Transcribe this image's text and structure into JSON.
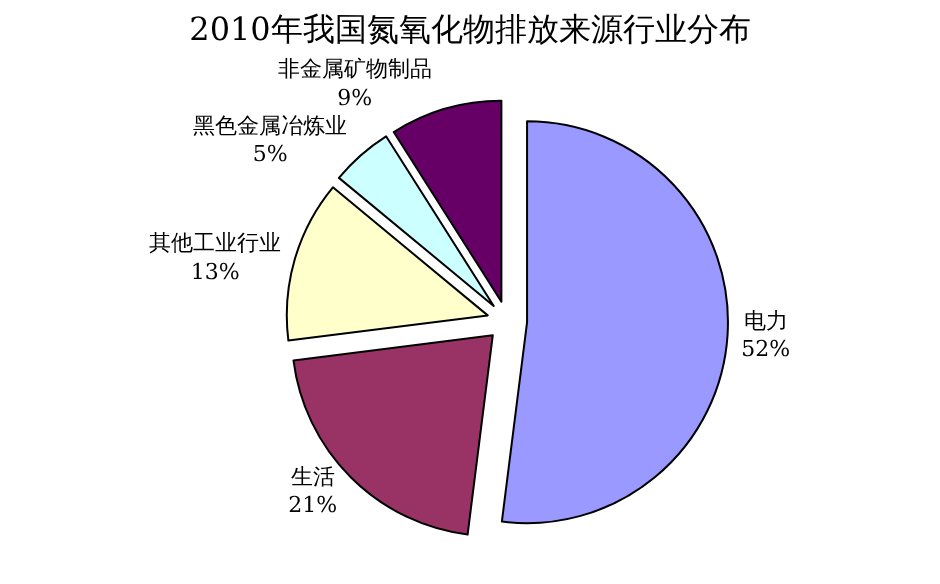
{
  "chart_data": {
    "type": "pie",
    "title": "2010年我国氮氧化物排放来源行业分布",
    "categories": [
      "电力",
      "生活",
      "其他工业行业",
      "黑色金属冶炼业",
      "非金属矿物制品"
    ],
    "values": [
      52,
      21,
      13,
      5,
      9
    ],
    "value_labels": [
      "52%",
      "21%",
      "13%",
      "5%",
      "9%"
    ],
    "colors": [
      "#9999ff",
      "#993366",
      "#ffffcc",
      "#ccffff",
      "#660066"
    ],
    "legend": false
  }
}
